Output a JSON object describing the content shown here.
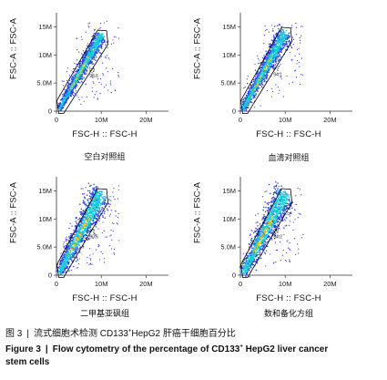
{
  "chart_data": [
    {
      "type": "scatter",
      "xlabel": "FSC-H :: FSC-H",
      "ylabel": "FSC-A :: FSC-A",
      "group_label": "空白对照组",
      "gate_name": "P2",
      "gate_value": "98.6",
      "x_ticks": [
        "0",
        "10M",
        "20M"
      ],
      "y_ticks": [
        "0",
        "5.0M",
        "10M",
        "15M"
      ],
      "xlim": [
        0,
        25000000
      ],
      "ylim": [
        0,
        17500000
      ],
      "ridge": [
        [
          700000,
          500000
        ],
        [
          10000000,
          13500000
        ]
      ]
    },
    {
      "type": "scatter",
      "xlabel": "FSC-H :: FSC-H",
      "ylabel": "FSC-A :: FSC-A",
      "group_label": "血清对照组",
      "gate_name": "P2",
      "gate_value": "94.1",
      "x_ticks": [
        "0",
        "10M",
        "20M"
      ],
      "y_ticks": [
        "0",
        "5.0M",
        "10M",
        "15M"
      ],
      "xlim": [
        0,
        25000000
      ],
      "ylim": [
        0,
        17500000
      ],
      "ridge": [
        [
          700000,
          500000
        ],
        [
          10000000,
          14000000
        ]
      ]
    },
    {
      "type": "scatter",
      "xlabel": "FSC-H :: FSC-H",
      "ylabel": "FSC-A :: FSC-A",
      "group_label": "二甲基亚砜组",
      "gate_name": "P2",
      "gate_value": "90.6",
      "x_ticks": [
        "0",
        "10M",
        "20M"
      ],
      "y_ticks": [
        "0",
        "5.0M",
        "10M",
        "15M"
      ],
      "xlim": [
        0,
        25000000
      ],
      "ylim": [
        0,
        17500000
      ],
      "ridge": [
        [
          700000,
          500000
        ],
        [
          10000000,
          14500000
        ]
      ]
    },
    {
      "type": "scatter",
      "xlabel": "FSC-H :: FSC-H",
      "ylabel": "FSC-A :: FSC-A",
      "group_label": "数和备化方组",
      "gate_name": "P2",
      "gate_value": "94.2",
      "x_ticks": [
        "0",
        "10M",
        "20M"
      ],
      "y_ticks": [
        "0",
        "5.0M",
        "10M",
        "15M"
      ],
      "xlim": [
        0,
        25000000
      ],
      "ylim": [
        0,
        17500000
      ],
      "ridge": [
        [
          700000,
          500000
        ],
        [
          10000000,
          14500000
        ]
      ]
    }
  ],
  "caption": {
    "cn_fig": "图 3",
    "cn_text_pre": "流式细胞术检测 CD133",
    "cn_sup": "+",
    "cn_text_post": "HepG2 肝癌干细胞百分比",
    "en_fig": "Figure 3",
    "en_text_pre": "Flow cytometry of the percentage of CD133",
    "en_sup": "+",
    "en_text_post": " HepG2 liver cancer",
    "en_text_line2": "stem cells"
  },
  "colors": {
    "low": "#2b3bd8",
    "mid": "#19c8d8",
    "high": "#f2d21b",
    "peak": "#e0731c",
    "gate": "#000000"
  }
}
